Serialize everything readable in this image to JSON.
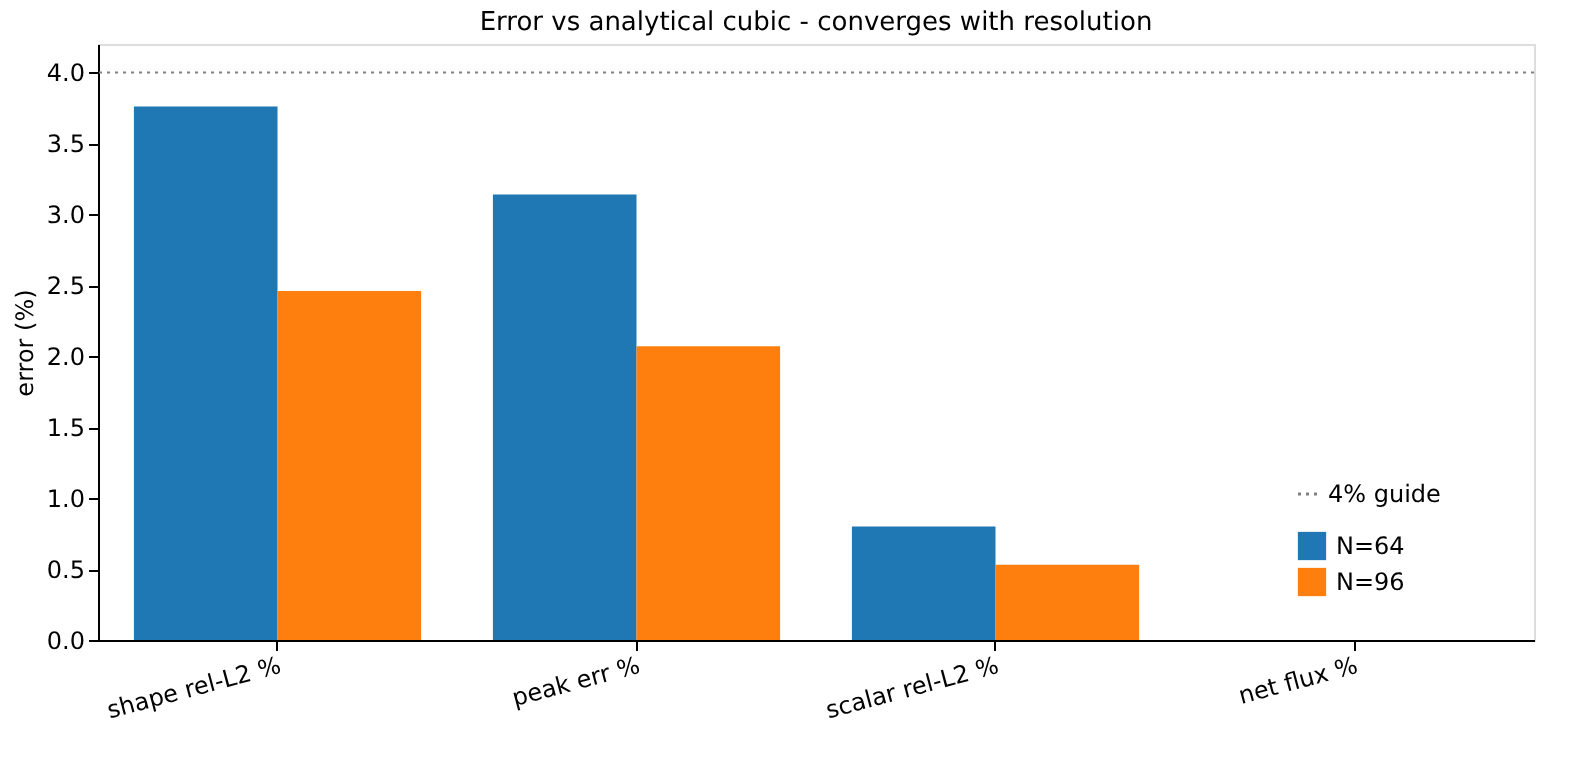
{
  "chart_data": {
    "type": "bar",
    "title": "Error vs analytical cubic - converges with resolution",
    "ylabel": "error (%)",
    "categories": [
      "shape rel-L2 %",
      "peak err %",
      "scalar rel-L2 %",
      "net flux %"
    ],
    "series": [
      {
        "name": "N=64",
        "color": "#1f77b4",
        "values": [
          3.76,
          3.14,
          0.8,
          0
        ]
      },
      {
        "name": "N=96",
        "color": "#ff7f0e",
        "values": [
          2.46,
          2.07,
          0.53,
          0
        ]
      }
    ],
    "ylim": [
      0,
      4.2
    ],
    "yticks": [
      {
        "value": 0,
        "label": "0.0"
      },
      0.5,
      {
        "value": 1,
        "label": "1.0"
      },
      1.5,
      {
        "value": 2,
        "label": "2.0"
      },
      2.5,
      {
        "value": 3,
        "label": "3.0"
      },
      3.5,
      {
        "value": 4,
        "label": "4.0"
      }
    ],
    "ref_lines": [
      {
        "axis": "y",
        "value": 4.0,
        "label": "4% guide",
        "color": "#808080",
        "line_style": "dotted"
      }
    ],
    "legend": "bottom right",
    "grid": false
  }
}
